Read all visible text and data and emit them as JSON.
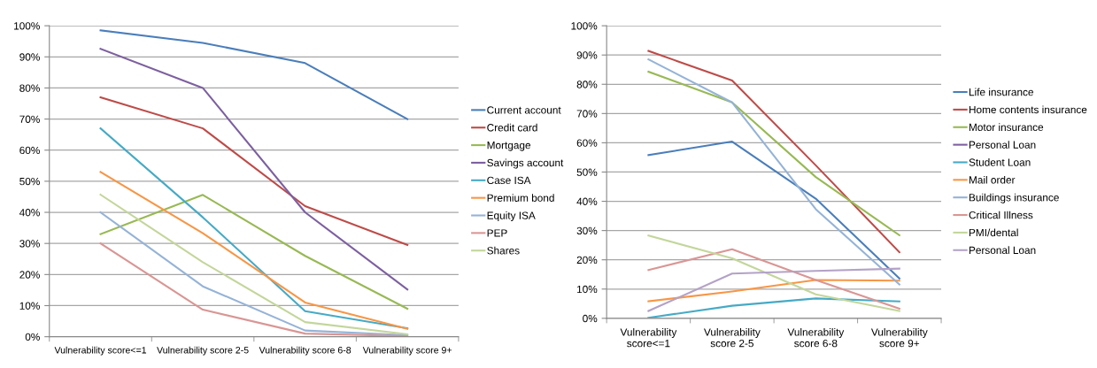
{
  "chart_data": [
    {
      "type": "line",
      "categories": [
        "Vulnerability score<=1",
        "Vulnerability score 2-5",
        "Vulnerability score 6-8",
        "Vulnerability score 9+"
      ],
      "ylim": [
        0,
        1
      ],
      "yticks": [
        {
          "value": 0,
          "label": "0%"
        },
        {
          "value": 0.1,
          "label": "10%"
        },
        {
          "value": 0.2,
          "label": "20%"
        },
        {
          "value": 0.3,
          "label": "30%"
        },
        {
          "value": 0.4,
          "label": "40%"
        },
        {
          "value": 0.5,
          "label": "50%"
        },
        {
          "value": 0.6,
          "label": "60%"
        },
        {
          "value": 0.7,
          "label": "70%"
        },
        {
          "value": 0.8,
          "label": "80%"
        },
        {
          "value": 0.9,
          "label": "90%"
        },
        {
          "value": 1,
          "label": "100%"
        }
      ],
      "grid": "y",
      "legend": "right",
      "marker": "none",
      "line_style": "solid",
      "series": [
        {
          "name": "Current account",
          "color": "#4a7ebb",
          "values": [
            0.985,
            0.945,
            0.88,
            0.7
          ]
        },
        {
          "name": "Credit card",
          "color": "#be4b48",
          "values": [
            0.77,
            0.67,
            0.42,
            0.295
          ]
        },
        {
          "name": "Mortgage",
          "color": "#98b954",
          "values": [
            0.33,
            0.456,
            0.26,
            0.09
          ]
        },
        {
          "name": "Savings account",
          "color": "#7d60a0",
          "values": [
            0.926,
            0.8,
            0.4,
            0.152
          ]
        },
        {
          "name": "Case ISA",
          "color": "#46aac5",
          "values": [
            0.67,
            0.384,
            0.082,
            0.027
          ]
        },
        {
          "name": "Premium bond",
          "color": "#f79646",
          "values": [
            0.53,
            0.333,
            0.11,
            0.025
          ]
        },
        {
          "name": "Equity ISA",
          "color": "#95b3d7",
          "values": [
            0.4,
            0.162,
            0.02,
            0.005
          ]
        },
        {
          "name": "PEP",
          "color": "#d99694",
          "values": [
            0.3,
            0.087,
            0.01,
            0.002
          ]
        },
        {
          "name": "Shares",
          "color": "#c3d69b",
          "values": [
            0.457,
            0.24,
            0.047,
            0.008
          ]
        }
      ]
    },
    {
      "type": "line",
      "categories": [
        "Vulnerability\nscore<=1",
        "Vulnerability\nscore 2-5",
        "Vulnerability\nscore 6-8",
        "Vulnerability\nscore 9+"
      ],
      "ylim": [
        0,
        1
      ],
      "yticks": [
        {
          "value": 0,
          "label": "0%"
        },
        {
          "value": 0.1,
          "label": "10%"
        },
        {
          "value": 0.2,
          "label": "20%"
        },
        {
          "value": 0.3,
          "label": "30%"
        },
        {
          "value": 0.4,
          "label": "40%"
        },
        {
          "value": 0.5,
          "label": "50%"
        },
        {
          "value": 0.6,
          "label": "60%"
        },
        {
          "value": 0.7,
          "label": "70%"
        },
        {
          "value": 0.8,
          "label": "80%"
        },
        {
          "value": 0.9,
          "label": "90%"
        },
        {
          "value": 1,
          "label": "100%"
        }
      ],
      "grid": "y",
      "legend": "right",
      "marker": "none",
      "line_style": "solid",
      "series": [
        {
          "name": "Life insurance",
          "color": "#4a7ebb",
          "values": [
            0.558,
            0.604,
            0.409,
            0.136
          ]
        },
        {
          "name": "Home contents insurance",
          "color": "#be4b48",
          "values": [
            0.914,
            0.813,
            0.523,
            0.226
          ]
        },
        {
          "name": "Motor insurance",
          "color": "#98b954",
          "values": [
            0.843,
            0.738,
            0.483,
            0.284
          ]
        },
        {
          "name": "Personal Loan",
          "color": "#7d60a0",
          "values": [
            null,
            null,
            null,
            null
          ]
        },
        {
          "name": "Student Loan",
          "color": "#46aac5",
          "values": [
            0.002,
            0.043,
            0.068,
            0.058
          ]
        },
        {
          "name": "Mail order",
          "color": "#f79646",
          "values": [
            0.058,
            0.092,
            0.131,
            0.129
          ]
        },
        {
          "name": "Buildings insurance",
          "color": "#95b3d7",
          "values": [
            0.885,
            0.738,
            0.373,
            0.116
          ]
        },
        {
          "name": "Critical Illness",
          "color": "#d99694",
          "values": [
            0.165,
            0.236,
            0.131,
            0.033
          ]
        },
        {
          "name": "PMI/dental",
          "color": "#c3d69b",
          "values": [
            0.283,
            0.205,
            0.082,
            0.025
          ]
        },
        {
          "name": "Personal Loan",
          "color": "#b3a2c7",
          "values": [
            0.025,
            0.153,
            0.162,
            0.17
          ]
        }
      ]
    }
  ]
}
